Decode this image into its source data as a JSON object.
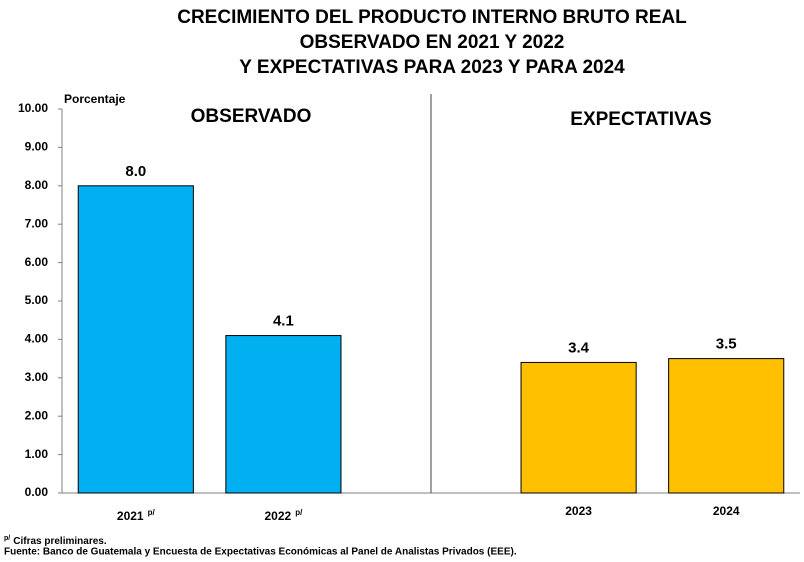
{
  "chart_data": {
    "type": "bar",
    "title": [
      "CRECIMIENTO DEL PRODUCTO INTERNO BRUTO REAL",
      "OBSERVADO EN 2021 Y 2022",
      "Y EXPECTATIVAS PARA 2023 Y PARA 2024"
    ],
    "y_axis_label": "Porcentaje",
    "section_labels": [
      "OBSERVADO",
      "EXPECTATIVAS"
    ],
    "categories": [
      "2021",
      "2022",
      null,
      "2023",
      "2024"
    ],
    "category_marks": [
      "p/",
      "p/",
      null,
      null,
      null
    ],
    "values": [
      8.0,
      4.1,
      null,
      3.4,
      3.5
    ],
    "value_labels": [
      "8.0",
      "4.1",
      null,
      "3.4",
      "3.5"
    ],
    "colors": [
      "#00B0F0",
      "#00B0F0",
      null,
      "#FFC000",
      "#FFC000"
    ],
    "ylim": [
      0,
      10
    ],
    "yticks": [
      {
        "value": 0,
        "label": "0.00"
      },
      {
        "value": 1,
        "label": "1.00"
      },
      {
        "value": 2,
        "label": "2.00"
      },
      {
        "value": 3,
        "label": "3.00"
      },
      {
        "value": 4,
        "label": "4.00"
      },
      {
        "value": 5,
        "label": "5.00"
      },
      {
        "value": 6,
        "label": "6.00"
      },
      {
        "value": 7,
        "label": "7.00"
      },
      {
        "value": 8,
        "label": "8.00"
      },
      {
        "value": 9,
        "label": "9.00"
      },
      {
        "value": 10,
        "label": "10.00"
      }
    ],
    "grid": false,
    "footnote_mark": "p/",
    "footnote": "Cifras preliminares.",
    "source": "Fuente:  Banco de Guatemala y Encuesta de Expectativas Económicas al Panel de Analistas Privados (EEE)."
  }
}
